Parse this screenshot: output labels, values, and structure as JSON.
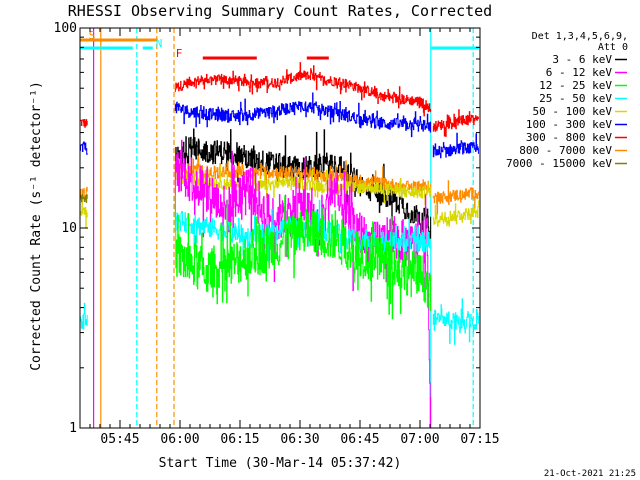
{
  "chart_data": {
    "type": "line",
    "title": "RHESSI Observing Summary Count Rates, Corrected",
    "xlabel": "Start Time (30-Mar-14 05:37:42)",
    "ylabel": "Corrected Count Rate (s⁻¹ detector⁻¹)",
    "yscale": "log",
    "xlim_min": [
      -2.7,
      97.3
    ],
    "ylim": [
      1,
      100
    ],
    "x_ticks": [
      {
        "min": 7.3,
        "label": "05:45"
      },
      {
        "min": 22.3,
        "label": "06:00"
      },
      {
        "min": 37.3,
        "label": "06:15"
      },
      {
        "min": 52.3,
        "label": "06:30"
      },
      {
        "min": 67.3,
        "label": "06:45"
      },
      {
        "min": 82.3,
        "label": "07:00"
      },
      {
        "min": 97.3,
        "label": "07:15"
      }
    ],
    "y_ticks": [
      {
        "v": 1,
        "label": "1"
      },
      {
        "v": 10,
        "label": "10"
      },
      {
        "v": 100,
        "label": "100"
      }
    ],
    "legend": {
      "position": "right",
      "header": [
        "Det 1,3,4,5,6,9,",
        "Att 0"
      ],
      "entries": [
        {
          "label": "3 - 6 keV",
          "color": "#000000"
        },
        {
          "label": "6 - 12 keV",
          "color": "#ff00ff"
        },
        {
          "label": "12 - 25 keV",
          "color": "#00ff00"
        },
        {
          "label": "25 - 50 keV",
          "color": "#00ffff"
        },
        {
          "label": "50 - 100 keV",
          "color": "#d8d800"
        },
        {
          "label": "100 - 300 keV",
          "color": "#0000ff"
        },
        {
          "label": "300 - 800 keV",
          "color": "#ff0000"
        },
        {
          "label": "800 - 7000 keV",
          "color": "#ff8c00"
        },
        {
          "label": "7000 - 15000 keV",
          "color": "#808000"
        }
      ]
    },
    "flags": [
      {
        "label": "S",
        "color": "#ff8c00",
        "start": -2.7,
        "end": 16.5
      },
      {
        "label": "N",
        "color": "#00ffff",
        "start": -2.7,
        "end": 10.5
      },
      {
        "label": "N",
        "color": "#00ffff",
        "start": 13.0,
        "end": 15.5
      },
      {
        "label": "N",
        "color": "#00ffff",
        "start": 85.0,
        "end": 97.0
      },
      {
        "label": "F",
        "color": "#ff0000",
        "start": 28.0,
        "end": 41.5
      },
      {
        "label": "F",
        "color": "#ff0000",
        "start": 54.0,
        "end": 59.5
      }
    ],
    "vlines": [
      {
        "x": 2.5,
        "color": "#ff8c00",
        "dashed": false
      },
      {
        "x": 0.7,
        "color": "#ff00ff",
        "dashed": false
      },
      {
        "x": 11.5,
        "color": "#00ffff",
        "dashed": true
      },
      {
        "x": 16.5,
        "color": "#ff8c00",
        "dashed": true
      },
      {
        "x": 20.8,
        "color": "#ff8c00",
        "dashed": true
      },
      {
        "x": 85.0,
        "color": "#00ffff",
        "dashed": false
      },
      {
        "x": 95.6,
        "color": "#00ffff",
        "dashed": true
      }
    ],
    "series": [
      {
        "color": "#ff0000",
        "noise": 0.025,
        "segments": [
          {
            "x": [
              -2.7,
              -0.8
            ],
            "y": [
              34,
              33
            ]
          },
          {
            "x": [
              21.0,
              25,
              30,
              35,
              40,
              45,
              50,
              53,
              55,
              58,
              62,
              66,
              70,
              74,
              78,
              82,
              84,
              85
            ],
            "y": [
              50,
              54,
              55,
              55,
              53,
              53,
              56,
              58,
              57,
              55,
              54,
              51,
              48,
              45,
              44,
              43,
              41,
              39
            ]
          },
          {
            "x": [
              85.5,
              88,
              92,
              97
            ],
            "y": [
              32,
              33,
              34,
              35
            ]
          }
        ]
      },
      {
        "color": "#0000ff",
        "noise": 0.03,
        "segments": [
          {
            "x": [
              -2.7,
              -0.8
            ],
            "y": [
              25,
              25
            ]
          },
          {
            "x": [
              21.0,
              25,
              30,
              35,
              40,
              45,
              50,
              53,
              56,
              60,
              65,
              70,
              75,
              80,
              84,
              85
            ],
            "y": [
              40,
              38,
              37,
              36,
              37,
              38,
              40,
              41,
              40,
              38,
              36,
              34,
              33,
              33,
              32,
              32
            ]
          },
          {
            "x": [
              85.5,
              88,
              92,
              97
            ],
            "y": [
              24,
              24,
              25,
              25
            ]
          }
        ]
      },
      {
        "color": "#000000",
        "noise": 0.06,
        "segments": [
          {
            "x": [
              21.0,
              25,
              30,
              35,
              40,
              45,
              50,
              55,
              60,
              64,
              68,
              72,
              76,
              80,
              84,
              85
            ],
            "y": [
              22,
              25,
              24,
              24,
              22,
              21,
              20,
              20,
              21,
              19,
              16,
              15,
              14,
              12,
              11,
              10
            ]
          }
        ]
      },
      {
        "color": "#ff8c00",
        "noise": 0.03,
        "segments": [
          {
            "x": [
              -2.7,
              -0.8
            ],
            "y": [
              15,
              15
            ]
          },
          {
            "x": [
              21.0,
              30,
              40,
              50,
              60,
              70,
              80,
              85
            ],
            "y": [
              20,
              19,
              19,
              19,
              18,
              17,
              16,
              16
            ]
          },
          {
            "x": [
              85.5,
              90,
              97
            ],
            "y": [
              14,
              14.5,
              15
            ]
          }
        ]
      },
      {
        "color": "#d8d800",
        "noise": 0.03,
        "segments": [
          {
            "x": [
              -2.7,
              -0.8
            ],
            "y": [
              12,
              12
            ]
          },
          {
            "x": [
              21.0,
              30,
              40,
              50,
              60,
              70,
              80,
              85
            ],
            "y": [
              18,
              17,
              16,
              17,
              16,
              16,
              15,
              15
            ]
          },
          {
            "x": [
              85.5,
              90,
              97
            ],
            "y": [
              11,
              11.5,
              12
            ]
          }
        ]
      },
      {
        "color": "#ff00ff",
        "noise": 0.12,
        "segments": [
          {
            "x": [
              21.0,
              25,
              28,
              31,
              34,
              37,
              40,
              43,
              46,
              50,
              53,
              55,
              57,
              60,
              63,
              66,
              70,
              75,
              80,
              84,
              85
            ],
            "y": [
              20,
              18,
              16,
              14,
              12,
              14,
              16,
              12,
              11,
              12,
              13,
              11,
              9,
              16,
              12,
              10,
              8,
              9,
              8,
              9,
              1
            ]
          }
        ]
      },
      {
        "color": "#00ffff",
        "noise": 0.05,
        "segments": [
          {
            "x": [
              -2.7,
              -0.8
            ],
            "y": [
              3.5,
              3.5
            ]
          },
          {
            "x": [
              21.0,
              25,
              30,
              35,
              40,
              45,
              50,
              55,
              60,
              65,
              70,
              75,
              80,
              85
            ],
            "y": [
              11,
              10.5,
              10,
              9.5,
              9,
              9.5,
              10,
              10,
              9.5,
              9,
              8.5,
              8.5,
              8.5,
              8.5
            ]
          },
          {
            "x": [
              85.5,
              90,
              97
            ],
            "y": [
              3.5,
              3.5,
              3.5
            ]
          }
        ]
      },
      {
        "color": "#00ff00",
        "noise": 0.12,
        "segments": [
          {
            "x": [
              21.0,
              25,
              30,
              35,
              40,
              45,
              50,
              55,
              60,
              65,
              70,
              75,
              80,
              84,
              85
            ],
            "y": [
              7.5,
              6.5,
              6,
              6.5,
              7.5,
              8,
              9,
              9.5,
              9,
              8,
              7,
              6.5,
              6,
              5.5,
              4.5
            ]
          }
        ]
      },
      {
        "color": "#808000",
        "noise": 0.02,
        "segments": [
          {
            "x": [
              -2.7,
              -0.8
            ],
            "y": [
              14,
              14
            ]
          }
        ]
      }
    ]
  },
  "footer": {
    "date": "21-Oct-2021 21:25"
  }
}
